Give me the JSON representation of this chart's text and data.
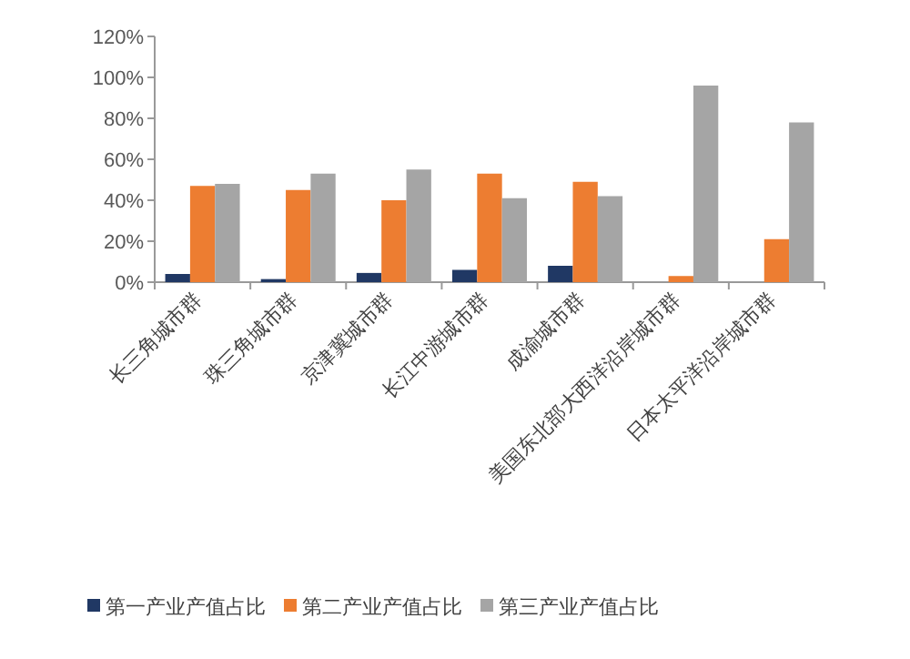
{
  "chart_data": {
    "type": "bar",
    "categories": [
      "长三角城市群",
      "珠三角城市群",
      "京津冀城市群",
      "长江中游城市群",
      "成渝城市群",
      "美国东北部大西洋沿岸城市群",
      "日本太平洋沿岸城市群"
    ],
    "series": [
      {
        "name": "第一产业产值占比",
        "color": "#203864",
        "values": [
          4,
          1.5,
          4.5,
          6,
          8,
          null,
          null
        ]
      },
      {
        "name": "第二产业产值占比",
        "color": "#ed7d31",
        "values": [
          47,
          45,
          40,
          53,
          49,
          3,
          21
        ]
      },
      {
        "name": "第三产业产值占比",
        "color": "#a5a5a5",
        "values": [
          48,
          53,
          55,
          41,
          42,
          96,
          78
        ]
      }
    ],
    "ylim": [
      0,
      120
    ],
    "yticks": [
      {
        "value": 0,
        "label": "0%"
      },
      {
        "value": 20,
        "label": "20%"
      },
      {
        "value": 40,
        "label": "40%"
      },
      {
        "value": 60,
        "label": "60%"
      },
      {
        "value": 80,
        "label": "80%"
      },
      {
        "value": 100,
        "label": "100%"
      },
      {
        "value": 120,
        "label": "120%"
      }
    ],
    "grid": false,
    "legend": "bottom"
  }
}
